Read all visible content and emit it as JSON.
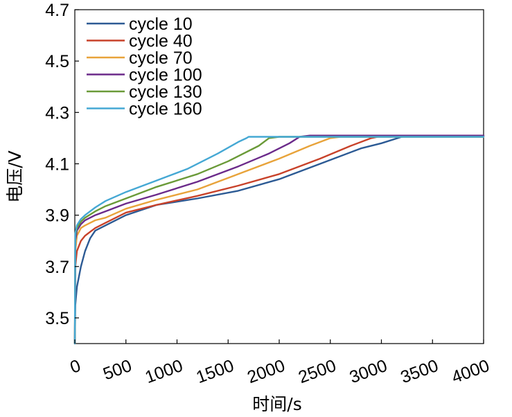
{
  "chart_data": {
    "type": "line",
    "title": "",
    "xlabel": "时间/s",
    "ylabel": "电压/V",
    "xlim": [
      0,
      4000
    ],
    "ylim": [
      3.4,
      4.7
    ],
    "xticks": [
      0,
      500,
      1000,
      1500,
      2000,
      2500,
      3000,
      3500,
      4000
    ],
    "yticks": [
      3.5,
      3.7,
      3.9,
      4.1,
      4.3,
      4.5,
      4.7
    ],
    "xtick_labels": [
      "0",
      "500",
      "1000",
      "1500",
      "2000",
      "2500",
      "3000",
      "3500",
      "4000"
    ],
    "ytick_labels": [
      "3.5",
      "3.7",
      "3.9",
      "4.1",
      "4.3",
      "4.5",
      "4.7"
    ],
    "grid": false,
    "legend_position": "top-left",
    "series": [
      {
        "name": "cycle 10",
        "color": "#2c5a94",
        "x": [
          0,
          5,
          20,
          60,
          100,
          150,
          200,
          300,
          500,
          800,
          1200,
          1600,
          2000,
          2400,
          2800,
          3000,
          3200,
          3300,
          3600,
          4000
        ],
        "y": [
          3.4,
          3.55,
          3.62,
          3.7,
          3.76,
          3.81,
          3.84,
          3.86,
          3.9,
          3.94,
          3.965,
          3.995,
          4.04,
          4.1,
          4.16,
          4.18,
          4.205,
          4.21,
          4.21,
          4.21
        ]
      },
      {
        "name": "cycle 40",
        "color": "#c8422a",
        "x": [
          0,
          5,
          20,
          60,
          100,
          150,
          200,
          300,
          500,
          800,
          1200,
          1600,
          2000,
          2400,
          2700,
          2900,
          3000,
          4000
        ],
        "y": [
          3.4,
          3.7,
          3.76,
          3.8,
          3.82,
          3.835,
          3.85,
          3.87,
          3.91,
          3.94,
          3.975,
          4.015,
          4.06,
          4.12,
          4.17,
          4.2,
          4.208,
          4.208
        ]
      },
      {
        "name": "cycle 70",
        "color": "#e8a33a",
        "x": [
          0,
          5,
          20,
          60,
          100,
          200,
          300,
          500,
          800,
          1200,
          1600,
          2000,
          2300,
          2500,
          2600,
          4000
        ],
        "y": [
          3.4,
          3.76,
          3.82,
          3.85,
          3.86,
          3.88,
          3.89,
          3.925,
          3.96,
          4.0,
          4.06,
          4.12,
          4.17,
          4.2,
          4.205,
          4.205
        ]
      },
      {
        "name": "cycle 100",
        "color": "#6b2a8a",
        "x": [
          0,
          5,
          20,
          60,
          100,
          200,
          300,
          500,
          800,
          1200,
          1600,
          1900,
          2100,
          2200,
          2300,
          4000
        ],
        "y": [
          3.4,
          3.8,
          3.84,
          3.865,
          3.88,
          3.9,
          3.915,
          3.945,
          3.98,
          4.03,
          4.09,
          4.14,
          4.18,
          4.205,
          4.21,
          4.21
        ]
      },
      {
        "name": "cycle 130",
        "color": "#6a9a38",
        "x": [
          0,
          5,
          20,
          60,
          100,
          200,
          300,
          500,
          800,
          1200,
          1500,
          1800,
          1900,
          2000,
          4000
        ],
        "y": [
          3.4,
          3.82,
          3.85,
          3.875,
          3.89,
          3.915,
          3.935,
          3.965,
          4.01,
          4.06,
          4.11,
          4.17,
          4.2,
          4.205,
          4.205
        ]
      },
      {
        "name": "cycle 160",
        "color": "#45a8d4",
        "x": [
          0,
          5,
          20,
          60,
          100,
          200,
          300,
          500,
          800,
          1100,
          1400,
          1600,
          1680,
          1700,
          4000
        ],
        "y": [
          3.4,
          3.83,
          3.86,
          3.885,
          3.9,
          3.93,
          3.955,
          3.99,
          4.035,
          4.08,
          4.14,
          4.185,
          4.2,
          4.205,
          4.205
        ]
      }
    ]
  }
}
